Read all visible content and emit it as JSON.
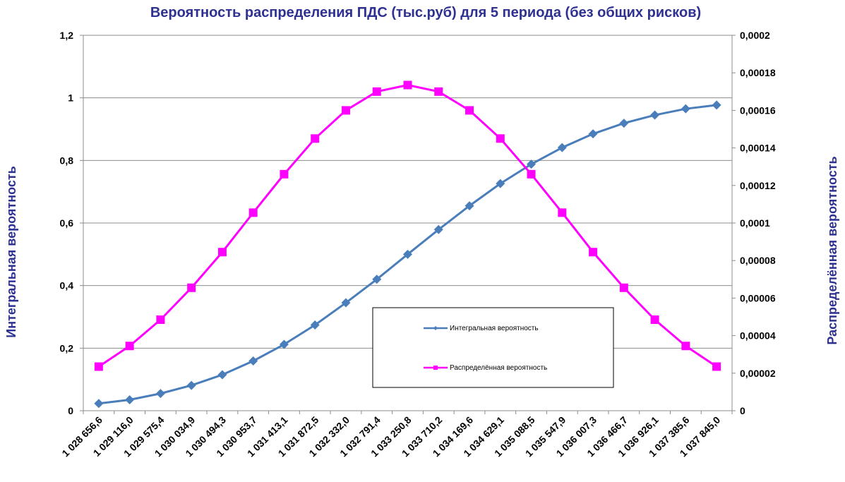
{
  "chart_data": {
    "type": "line",
    "title": "Вероятность распределения ПДС (тыс.руб) для 5 периода (без общих рисков)",
    "ylabel": "Интегральная вероятность",
    "y2label": "Распределённая вероятность",
    "ylim": [
      0,
      1.2
    ],
    "y2lim": [
      0,
      0.0002
    ],
    "yticks": [
      "0",
      "0,2",
      "0,4",
      "0,6",
      "0,8",
      "1",
      "1,2"
    ],
    "y2ticks": [
      "0",
      "0,00002",
      "0,00004",
      "0,00006",
      "0,00008",
      "0,0001",
      "0,00012",
      "0,00014",
      "0,00016",
      "0,00018",
      "0,0002"
    ],
    "grid": true,
    "legend_position": "inside-bottom-center",
    "categories": [
      "1 028 656,6",
      "1 029 116,0",
      "1 029 575,4",
      "1 030 034,9",
      "1 030 494,3",
      "1 030 953,7",
      "1 031 413,1",
      "1 031 872,5",
      "1 032 332,0",
      "1 032 791,4",
      "1 033 250,8",
      "1 033 710,2",
      "1 034 169,6",
      "1 034 629,1",
      "1 035 088,5",
      "1 035 547,9",
      "1 036 007,3",
      "1 036 466,7",
      "1 036 926,1",
      "1 037 385,6",
      "1 037 845,0"
    ],
    "series": [
      {
        "name": "Интегральная вероятность",
        "axis": "left",
        "color": "#4a7ebb",
        "marker": "diamond",
        "values": [
          0.023,
          0.035,
          0.055,
          0.081,
          0.115,
          0.159,
          0.212,
          0.274,
          0.345,
          0.42,
          0.5,
          0.579,
          0.655,
          0.726,
          0.788,
          0.841,
          0.885,
          0.919,
          0.945,
          0.965,
          0.977
        ]
      },
      {
        "name": "Распределённая вероятность",
        "axis": "right",
        "color": "#ff00ff",
        "marker": "square",
        "values": [
          2.35e-05,
          3.45e-05,
          4.85e-05,
          6.55e-05,
          8.45e-05,
          0.0001055,
          0.000126,
          0.000145,
          0.00016,
          0.00017,
          0.0001735,
          0.00017,
          0.00016,
          0.000145,
          0.000126,
          0.0001055,
          8.45e-05,
          6.55e-05,
          4.85e-05,
          3.45e-05,
          2.35e-05
        ]
      }
    ]
  }
}
